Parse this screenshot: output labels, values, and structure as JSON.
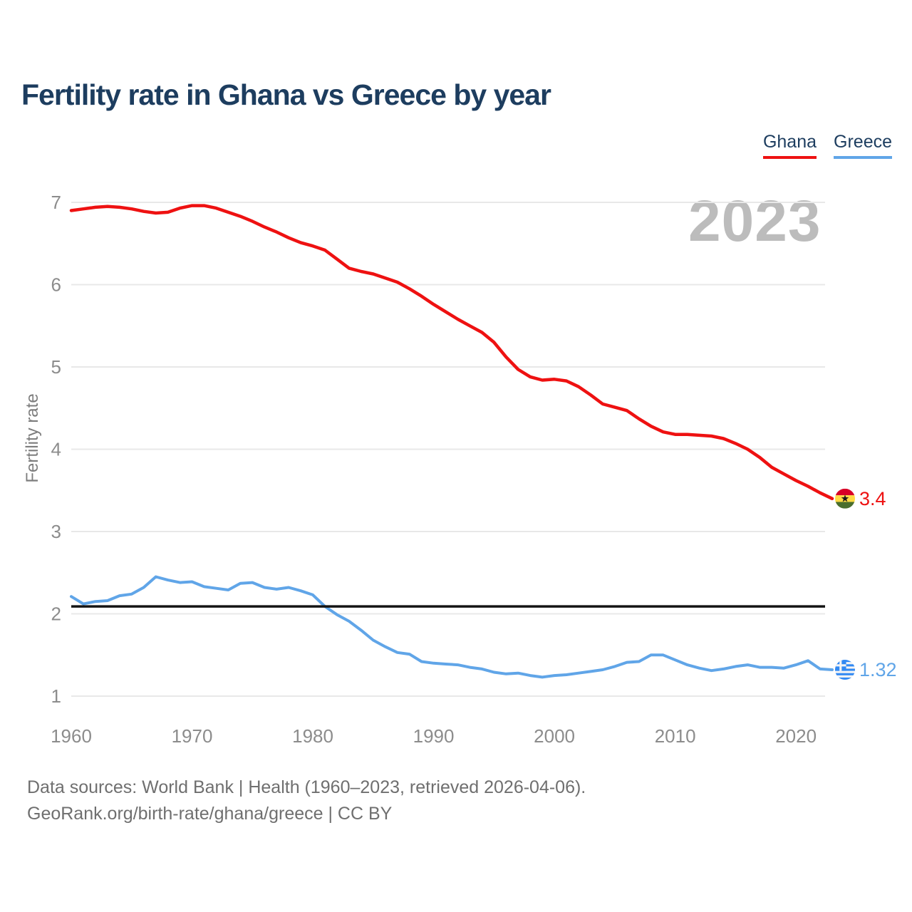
{
  "header": {
    "title": "Fertility rate in Ghana vs Greece by year"
  },
  "legend": {
    "items": [
      {
        "label": "Ghana",
        "color": "#ee1111"
      },
      {
        "label": "Greece",
        "color": "#60a5e8"
      }
    ]
  },
  "watermark": "2023",
  "y_axis": {
    "label": "Fertility rate"
  },
  "chart_data": {
    "type": "line",
    "title": "Fertility rate in Ghana vs Greece by year",
    "ylabel": "Fertility rate",
    "xlabel": "",
    "xlim": [
      1960,
      2023
    ],
    "ylim": [
      1,
      7
    ],
    "yticks": [
      1,
      2,
      3,
      4,
      5,
      6,
      7
    ],
    "xticks": [
      1960,
      1970,
      1980,
      1990,
      2000,
      2010,
      2020
    ],
    "grid": "horizontal-only",
    "legend_position": "top-right",
    "x": [
      1960,
      1961,
      1962,
      1963,
      1964,
      1965,
      1966,
      1967,
      1968,
      1969,
      1970,
      1971,
      1972,
      1973,
      1974,
      1975,
      1976,
      1977,
      1978,
      1979,
      1980,
      1981,
      1982,
      1983,
      1984,
      1985,
      1986,
      1987,
      1988,
      1989,
      1990,
      1991,
      1992,
      1993,
      1994,
      1995,
      1996,
      1997,
      1998,
      1999,
      2000,
      2001,
      2002,
      2003,
      2004,
      2005,
      2006,
      2007,
      2008,
      2009,
      2010,
      2011,
      2012,
      2013,
      2014,
      2015,
      2016,
      2017,
      2018,
      2019,
      2020,
      2021,
      2022,
      2023
    ],
    "series": [
      {
        "name": "Ghana",
        "color": "#ee1111",
        "end_label": "3.4",
        "flag": "ghana",
        "values": [
          6.9,
          6.92,
          6.94,
          6.95,
          6.94,
          6.92,
          6.89,
          6.87,
          6.88,
          6.93,
          6.96,
          6.96,
          6.93,
          6.88,
          6.83,
          6.77,
          6.7,
          6.64,
          6.57,
          6.51,
          6.47,
          6.42,
          6.31,
          6.2,
          6.16,
          6.13,
          6.08,
          6.03,
          5.95,
          5.86,
          5.76,
          5.67,
          5.58,
          5.5,
          5.42,
          5.3,
          5.12,
          4.97,
          4.88,
          4.84,
          4.85,
          4.83,
          4.76,
          4.66,
          4.55,
          4.51,
          4.47,
          4.37,
          4.28,
          4.21,
          4.18,
          4.18,
          4.17,
          4.16,
          4.13,
          4.07,
          4.0,
          3.9,
          3.78,
          3.7,
          3.62,
          3.55,
          3.47,
          3.4
        ]
      },
      {
        "name": "Greece",
        "color": "#60a5e8",
        "end_label": "1.32",
        "flag": "greece",
        "values": [
          2.21,
          2.12,
          2.15,
          2.16,
          2.22,
          2.24,
          2.32,
          2.45,
          2.41,
          2.38,
          2.39,
          2.33,
          2.31,
          2.29,
          2.37,
          2.38,
          2.32,
          2.3,
          2.32,
          2.28,
          2.23,
          2.09,
          1.99,
          1.91,
          1.8,
          1.68,
          1.6,
          1.53,
          1.51,
          1.42,
          1.4,
          1.39,
          1.38,
          1.35,
          1.33,
          1.29,
          1.27,
          1.28,
          1.25,
          1.23,
          1.25,
          1.26,
          1.28,
          1.3,
          1.32,
          1.36,
          1.41,
          1.42,
          1.5,
          1.5,
          1.44,
          1.38,
          1.34,
          1.31,
          1.33,
          1.36,
          1.38,
          1.35,
          1.35,
          1.34,
          1.38,
          1.43,
          1.33,
          1.32
        ]
      }
    ],
    "reference_line": {
      "value": 2.09,
      "color": "#141414"
    }
  },
  "flags": {
    "ghana": {
      "red": "#d80027",
      "gold": "#ffda44",
      "green": "#496e2d",
      "star": "#1a1a1a"
    },
    "greece": {
      "blue": "#338af3",
      "white": "#f4f4f4"
    }
  },
  "footer": {
    "line1": "Data sources: World Bank | Health (1960–2023, retrieved 2026-04-06).",
    "line2": "GeoRank.org/birth-rate/ghana/greece | CC BY"
  }
}
